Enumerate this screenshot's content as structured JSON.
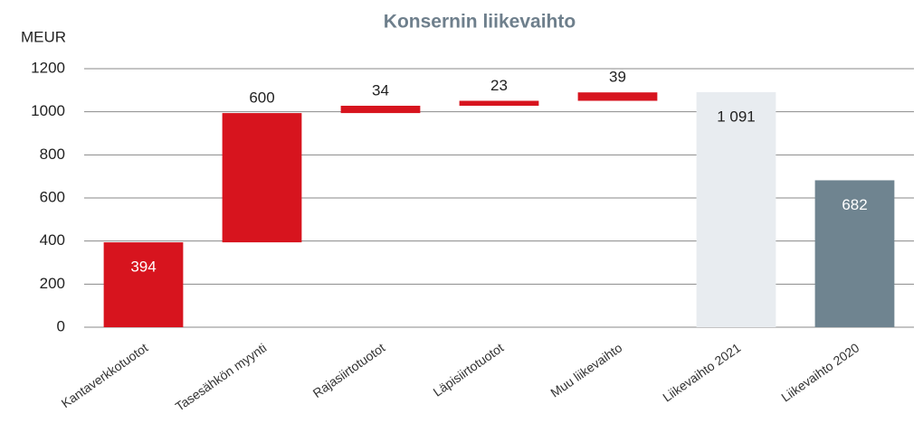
{
  "chart_data": {
    "type": "waterfall",
    "title": "Konsernin liikevaihto",
    "y_label": "MEUR",
    "categories": [
      "Kantaverkkotuotot",
      "Tasesähkön myynti",
      "Rajasiirtotuotot",
      "Läpisiirtotuotot",
      "Muu liikevaihto",
      "Liikevaihto 2021",
      "Liikevaihto 2020"
    ],
    "values": [
      394,
      600,
      34,
      23,
      39,
      1091,
      682
    ],
    "value_labels": [
      "394",
      "600",
      "34",
      "23",
      "39",
      "1 091",
      "682"
    ],
    "measure": [
      "relative",
      "relative",
      "relative",
      "relative",
      "relative",
      "total",
      "total"
    ],
    "colors": [
      "#d7141e",
      "#d7141e",
      "#d7141e",
      "#d7141e",
      "#d7141e",
      "#e8ecf0",
      "#6f8490"
    ],
    "ylim": [
      0,
      1200
    ],
    "yticks": [
      0,
      200,
      400,
      600,
      800,
      1000,
      1200
    ],
    "grid": true
  }
}
